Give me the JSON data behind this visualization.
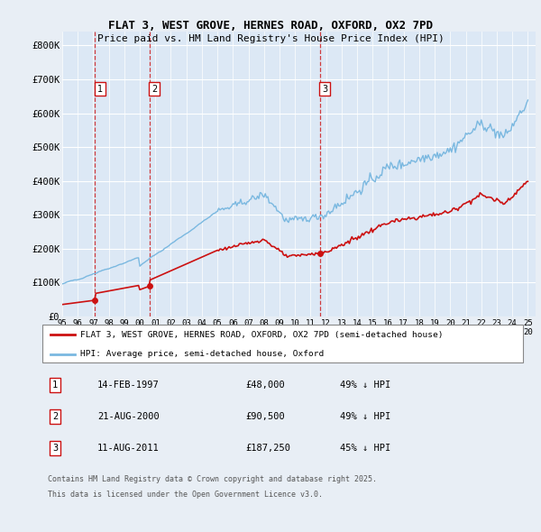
{
  "title1": "FLAT 3, WEST GROVE, HERNES ROAD, OXFORD, OX2 7PD",
  "title2": "Price paid vs. HM Land Registry's House Price Index (HPI)",
  "ylabel_ticks": [
    "£0",
    "£100K",
    "£200K",
    "£300K",
    "£400K",
    "£500K",
    "£600K",
    "£700K",
    "£800K"
  ],
  "ytick_vals": [
    0,
    100000,
    200000,
    300000,
    400000,
    500000,
    600000,
    700000,
    800000
  ],
  "ylim": [
    0,
    840000
  ],
  "xlim_start": 1995.0,
  "xlim_end": 2025.5,
  "bg_color": "#e8eef5",
  "plot_bg": "#dce8f5",
  "grid_color": "#ffffff",
  "hpi_color": "#7ab8e0",
  "price_color": "#cc1111",
  "legend_label_red": "FLAT 3, WEST GROVE, HERNES ROAD, OXFORD, OX2 7PD (semi-detached house)",
  "legend_label_blue": "HPI: Average price, semi-detached house, Oxford",
  "transactions": [
    {
      "num": 1,
      "date": "14-FEB-1997",
      "year": 1997.12,
      "price": 48000,
      "pct": "49% ↓ HPI"
    },
    {
      "num": 2,
      "date": "21-AUG-2000",
      "year": 2000.63,
      "price": 90500,
      "pct": "49% ↓ HPI"
    },
    {
      "num": 3,
      "date": "11-AUG-2011",
      "year": 2011.61,
      "price": 187250,
      "pct": "45% ↓ HPI"
    }
  ],
  "footnote1": "Contains HM Land Registry data © Crown copyright and database right 2025.",
  "footnote2": "This data is licensed under the Open Government Licence v3.0.",
  "xtick_years": [
    1995,
    1996,
    1997,
    1998,
    1999,
    2000,
    2001,
    2002,
    2003,
    2004,
    2005,
    2006,
    2007,
    2008,
    2009,
    2010,
    2011,
    2012,
    2013,
    2014,
    2015,
    2016,
    2017,
    2018,
    2019,
    2020,
    2021,
    2022,
    2023,
    2024,
    2025
  ]
}
